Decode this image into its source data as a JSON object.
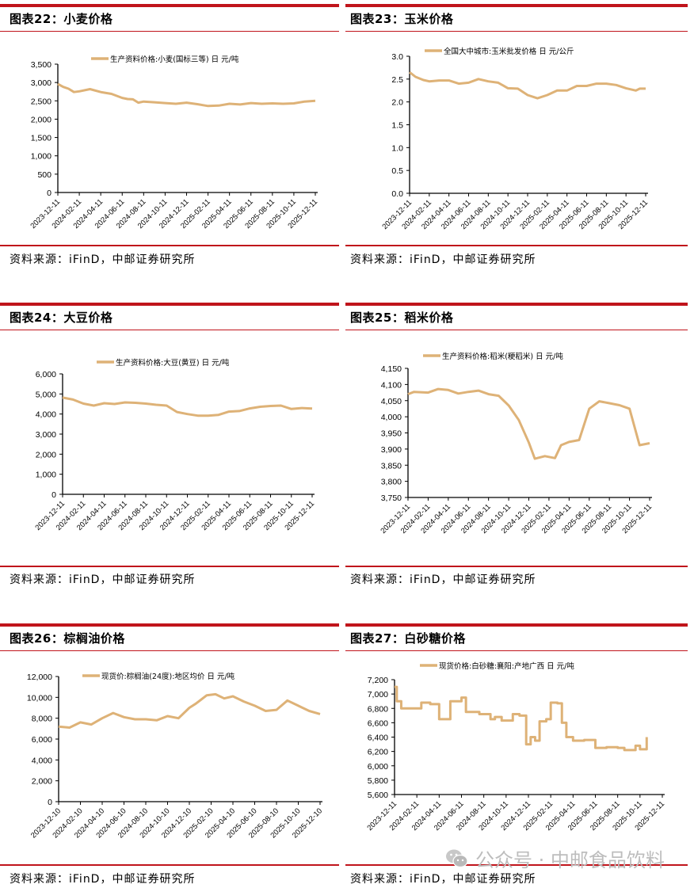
{
  "source_label": "资料来源：iFinD，中邮证券研究所",
  "watermark": {
    "icon": "wechat-icon",
    "text": "公众号 · 中邮食品饮料"
  },
  "colors": {
    "accent_red": "#c0141b",
    "line": "#deb277",
    "axis": "#000000",
    "watermark": "#bdbdbd"
  },
  "panels": [
    {
      "id": "fig22",
      "title": "图表22：小麦价格",
      "source": "资料来源：iFinD，中邮证券研究所"
    },
    {
      "id": "fig23",
      "title": "图表23：玉米价格",
      "source": "资料来源：iFinD，中邮证券研究所"
    },
    {
      "id": "fig24",
      "title": "图表24：大豆价格",
      "source": "资料来源：iFinD，中邮证券研究所"
    },
    {
      "id": "fig25",
      "title": "图表25：稻米价格",
      "source": "资料来源：iFinD，中邮证券研究所"
    },
    {
      "id": "fig26",
      "title": "图表26：棕榈油价格",
      "source": "资料来源：iFinD，中邮证券研究所"
    },
    {
      "id": "fig27",
      "title": "图表27：白砂糖价格",
      "source": "资料来源：iFinD，中邮证券研究所"
    }
  ],
  "chart_data": [
    {
      "type": "line",
      "title": "图表22：小麦价格",
      "legend": "生产资料价格:小麦(国标三等) 日 元/吨",
      "xlabel": "",
      "ylabel": "",
      "ylim": [
        0,
        3500
      ],
      "yticks": [
        0,
        500,
        1000,
        1500,
        2000,
        2500,
        3000,
        3500
      ],
      "ytick_labels": [
        "0",
        "500",
        "1,000",
        "1,500",
        "2,000",
        "2,500",
        "3,000",
        "3,500"
      ],
      "xticks": [
        "2023-12-11",
        "2024-02-11",
        "2024-04-11",
        "2024-06-11",
        "2024-08-11",
        "2024-10-11",
        "2024-12-11",
        "2025-02-11",
        "2025-04-11",
        "2025-06-11",
        "2025-08-11",
        "2025-10-11",
        "2025-12-11"
      ],
      "grid": false,
      "legend_position": "top",
      "series": [
        {
          "name": "生产资料价格:小麦(国标三等)",
          "x": [
            0,
            0.25,
            0.5,
            0.75,
            1,
            1.5,
            2,
            2.5,
            3,
            3.25,
            3.5,
            3.75,
            4,
            4.5,
            5,
            5.5,
            6,
            6.5,
            7,
            7.5,
            8,
            8.5,
            9,
            9.5,
            10,
            10.5,
            11,
            11.5,
            12
          ],
          "values": [
            2960,
            2880,
            2830,
            2740,
            2760,
            2820,
            2740,
            2690,
            2580,
            2550,
            2540,
            2450,
            2480,
            2460,
            2440,
            2420,
            2450,
            2410,
            2360,
            2370,
            2420,
            2400,
            2440,
            2420,
            2430,
            2420,
            2430,
            2480,
            2500
          ]
        }
      ]
    },
    {
      "type": "line",
      "title": "图表23：玉米价格",
      "legend": "全国大中城市:玉米批发价格 日 元/公斤",
      "xlabel": "",
      "ylabel": "",
      "ylim": [
        0,
        3.0
      ],
      "yticks": [
        0,
        0.5,
        1.0,
        1.5,
        2.0,
        2.5,
        3.0
      ],
      "ytick_labels": [
        "0.0",
        "0.5",
        "1.0",
        "1.5",
        "2.0",
        "2.5",
        "3.0"
      ],
      "xticks": [
        "2023-12-11",
        "2024-02-11",
        "2024-04-11",
        "2024-06-11",
        "2024-08-11",
        "2024-10-11",
        "2024-12-11",
        "2025-02-11",
        "2025-04-11",
        "2025-06-11",
        "2025-08-11",
        "2025-10-11",
        "2025-12-11"
      ],
      "grid": false,
      "legend_position": "top",
      "series": [
        {
          "name": "全国大中城市:玉米批发价格",
          "x": [
            0,
            0.3,
            0.7,
            1,
            1.5,
            2,
            2.5,
            3,
            3.5,
            4,
            4.5,
            5,
            5.5,
            6,
            6.5,
            7,
            7.5,
            8,
            8.5,
            9,
            9.5,
            10,
            10.5,
            11,
            11.5,
            11.7,
            12
          ],
          "values": [
            2.65,
            2.55,
            2.48,
            2.45,
            2.47,
            2.47,
            2.4,
            2.42,
            2.5,
            2.45,
            2.42,
            2.3,
            2.29,
            2.15,
            2.08,
            2.15,
            2.25,
            2.25,
            2.35,
            2.35,
            2.4,
            2.4,
            2.37,
            2.3,
            2.25,
            2.29,
            2.29
          ]
        }
      ]
    },
    {
      "type": "line",
      "title": "图表24：大豆价格",
      "legend": "生产资料价格:大豆(黄豆) 日 元/吨",
      "xlabel": "",
      "ylabel": "",
      "ylim": [
        0,
        6000
      ],
      "yticks": [
        0,
        1000,
        2000,
        3000,
        4000,
        5000,
        6000
      ],
      "ytick_labels": [
        "0",
        "1,000",
        "2,000",
        "3,000",
        "4,000",
        "5,000",
        "6,000"
      ],
      "xticks": [
        "2023-12-11",
        "2024-02-11",
        "2024-04-11",
        "2024-06-11",
        "2024-08-11",
        "2024-10-11",
        "2024-12-11",
        "2025-02-11",
        "2025-04-11",
        "2025-06-11",
        "2025-08-11",
        "2025-10-11",
        "2025-12-11"
      ],
      "grid": false,
      "legend_position": "top",
      "series": [
        {
          "name": "生产资料价格:大豆(黄豆)",
          "x": [
            0,
            0.5,
            1,
            1.5,
            2,
            2.5,
            3,
            3.5,
            4,
            4.5,
            5,
            5.5,
            6,
            6.5,
            7,
            7.5,
            8,
            8.5,
            9,
            9.5,
            10,
            10.5,
            11,
            11.5,
            12
          ],
          "values": [
            4820,
            4720,
            4520,
            4420,
            4540,
            4500,
            4580,
            4560,
            4520,
            4460,
            4420,
            4100,
            4000,
            3920,
            3920,
            3960,
            4120,
            4150,
            4280,
            4360,
            4400,
            4420,
            4250,
            4300,
            4270
          ]
        }
      ]
    },
    {
      "type": "line",
      "title": "图表25：稻米价格",
      "legend": "生产资料价格:稻米(粳稻米) 日 元/吨",
      "xlabel": "",
      "ylabel": "",
      "ylim": [
        3750,
        4150
      ],
      "yticks": [
        3750,
        3800,
        3850,
        3900,
        3950,
        4000,
        4050,
        4100,
        4150
      ],
      "ytick_labels": [
        "3,750",
        "3,800",
        "3,850",
        "3,900",
        "3,950",
        "4,000",
        "4,050",
        "4,100",
        "4,150"
      ],
      "xticks": [
        "2023-12-11",
        "2024-02-11",
        "2024-04-11",
        "2024-06-11",
        "2024-08-11",
        "2024-10-11",
        "2024-12-11",
        "2025-02-11",
        "2025-04-11",
        "2025-06-11",
        "2025-08-11",
        "2025-10-11",
        "2025-12-11"
      ],
      "grid": false,
      "legend_position": "top",
      "series": [
        {
          "name": "生产资料价格:稻米(粳稻米)",
          "x": [
            0,
            0.3,
            1,
            1.5,
            2,
            2.5,
            3,
            3.5,
            4,
            4.5,
            5,
            5.5,
            6,
            6.3,
            6.8,
            7.3,
            7.6,
            8,
            8.5,
            9,
            9.5,
            10,
            10.5,
            11,
            11.5,
            12
          ],
          "values": [
            4070,
            4077,
            4075,
            4086,
            4083,
            4072,
            4077,
            4081,
            4070,
            4065,
            4035,
            3990,
            3920,
            3870,
            3878,
            3872,
            3912,
            3922,
            3928,
            4025,
            4048,
            4042,
            4036,
            4025,
            3912,
            3918
          ]
        }
      ]
    },
    {
      "type": "line",
      "title": "图表26：棕榈油价格",
      "legend": "现货价:棕榈油(24度):地区均价 日 元/吨",
      "xlabel": "",
      "ylabel": "",
      "ylim": [
        0,
        12000
      ],
      "yticks": [
        0,
        2000,
        4000,
        6000,
        8000,
        10000,
        12000
      ],
      "ytick_labels": [
        "0",
        "2,000",
        "4,000",
        "6,000",
        "8,000",
        "10,000",
        "12,000"
      ],
      "xticks": [
        "2023-12-10",
        "2024-02-10",
        "2024-04-10",
        "2024-06-10",
        "2024-08-10",
        "2024-10-10",
        "2024-12-10",
        "2025-02-10",
        "2025-04-10",
        "2025-06-10",
        "2025-08-10",
        "2025-10-10",
        "2025-12-10"
      ],
      "grid": false,
      "legend_position": "top",
      "series": [
        {
          "name": "现货价:棕榈油(24度):地区均价",
          "x": [
            0,
            0.5,
            1,
            1.5,
            2,
            2.5,
            3,
            3.5,
            4,
            4.5,
            5,
            5.5,
            6,
            6.3,
            6.8,
            7.2,
            7.6,
            8,
            8.5,
            9,
            9.5,
            10,
            10.5,
            11,
            11.5,
            12
          ],
          "values": [
            7200,
            7100,
            7600,
            7400,
            8000,
            8500,
            8100,
            7900,
            7900,
            7800,
            8200,
            8000,
            9000,
            9400,
            10200,
            10300,
            9900,
            10100,
            9600,
            9200,
            8700,
            8800,
            9700,
            9200,
            8700,
            8400
          ]
        }
      ]
    },
    {
      "type": "line",
      "title": "图表27：白砂糖价格",
      "legend": "现货价格:白砂糖:襄阳:产地广西 日 元/吨",
      "xlabel": "",
      "ylabel": "",
      "ylim": [
        5600,
        7200
      ],
      "yticks": [
        5600,
        5800,
        6000,
        6200,
        6400,
        6600,
        6800,
        7000,
        7200
      ],
      "ytick_labels": [
        "5,600",
        "5,800",
        "6,000",
        "6,200",
        "6,400",
        "6,600",
        "6,800",
        "7,000",
        "7,200"
      ],
      "xticks": [
        "2023-12-11",
        "2024-02-11",
        "2024-04-11",
        "2024-06-11",
        "2024-08-11",
        "2024-10-11",
        "2024-12-11",
        "2025-02-11",
        "2025-04-11",
        "2025-06-11",
        "2025-08-11",
        "2025-10-11",
        "2025-12-11"
      ],
      "grid": false,
      "legend_position": "top",
      "series": [
        {
          "name": "现货价格:白砂糖:襄阳:产地广西",
          "x": [
            0,
            0.1,
            0.3,
            1,
            1.2,
            1.6,
            2,
            2.2,
            2.5,
            3,
            3.2,
            3.5,
            3.8,
            4,
            4.3,
            4.5,
            4.8,
            5,
            5.3,
            5.6,
            5.9,
            6.1,
            6.3,
            6.5,
            6.8,
            7,
            7.3,
            7.5,
            7.7
          ],
          "values": [
            7100,
            6900,
            6800,
            6800,
            6880,
            6860,
            6650,
            6650,
            6900,
            6950,
            6750,
            6750,
            6720,
            6720,
            6650,
            6680,
            6630,
            6630,
            6720,
            6700,
            6300,
            6400,
            6350,
            6620,
            6650,
            6880,
            6870,
            6600,
            6400
          ],
          "values_tail_x": [
            8,
            8.5,
            9,
            9.5,
            10,
            10.3,
            10.8,
            11,
            11.3
          ],
          "values_tail": [
            6350,
            6360,
            6250,
            6260,
            6250,
            6220,
            6280,
            6230,
            6400
          ]
        }
      ]
    }
  ]
}
